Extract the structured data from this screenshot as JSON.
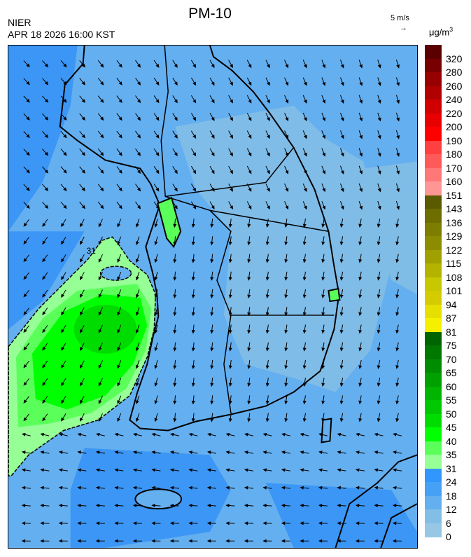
{
  "header": {
    "title": "PM-10",
    "agency": "NIER",
    "timestamp": "APR 18 2026 16:00 KST",
    "wind_reference": "5 m/s",
    "wind_reference_arrow": "→",
    "unit": "μg/m",
    "unit_superscript": "3"
  },
  "map": {
    "contour_label": "31",
    "colors": {
      "sea_dark": "#3c96f5",
      "base": "#64aff0",
      "land_light": "#82bee6",
      "green_35": "#96ff96",
      "green_40": "#5aff5a",
      "green_45": "#00ff00",
      "green_50": "#00dc00"
    }
  },
  "legend": {
    "labels": [
      "320",
      "280",
      "260",
      "240",
      "220",
      "200",
      "190",
      "180",
      "170",
      "160",
      "151",
      "143",
      "136",
      "129",
      "122",
      "115",
      "108",
      "101",
      "94",
      "87",
      "81",
      "75",
      "70",
      "65",
      "60",
      "55",
      "50",
      "45",
      "40",
      "35",
      "31",
      "24",
      "18",
      "12",
      "6",
      "0"
    ],
    "colors": [
      "#5a0000",
      "#780000",
      "#960000",
      "#b00000",
      "#d00000",
      "#e80000",
      "#ff0000",
      "#ff4040",
      "#ff5a5a",
      "#ff7878",
      "#ff9696",
      "#5a5a00",
      "#6e6e00",
      "#7d7d00",
      "#8c8c00",
      "#a0a000",
      "#b4b400",
      "#c8c800",
      "#d4cc00",
      "#e6e000",
      "#f5f000",
      "#006400",
      "#007800",
      "#008c00",
      "#00a000",
      "#00b400",
      "#00c800",
      "#00dc00",
      "#00ff00",
      "#5aff5a",
      "#96ff96",
      "#3296ff",
      "#46a0f5",
      "#64aff0",
      "#82bee6",
      "#96c8e6"
    ]
  }
}
